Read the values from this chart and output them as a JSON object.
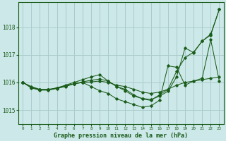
{
  "title": "Graphe pression niveau de la mer (hPa)",
  "bg_color": "#cce8e8",
  "grid_color": "#aacccc",
  "line_color": "#1a5c1a",
  "xlim": [
    -0.5,
    23.5
  ],
  "ylim": [
    1014.5,
    1018.9
  ],
  "yticks": [
    1015,
    1016,
    1017,
    1018
  ],
  "xticks": [
    0,
    1,
    2,
    3,
    4,
    5,
    6,
    7,
    8,
    9,
    10,
    11,
    12,
    13,
    14,
    15,
    16,
    17,
    18,
    19,
    20,
    21,
    22,
    23
  ],
  "lines": [
    [
      1016.0,
      1015.85,
      1015.75,
      1015.75,
      1015.8,
      1015.88,
      1015.95,
      1016.0,
      1016.02,
      1016.05,
      1016.0,
      1015.9,
      1015.85,
      1015.75,
      1015.65,
      1015.6,
      1015.65,
      1015.75,
      1015.9,
      1016.0,
      1016.05,
      1016.1,
      1016.15,
      1016.2
    ],
    [
      1016.0,
      1015.8,
      1015.72,
      1015.72,
      1015.78,
      1015.85,
      1015.95,
      1016.0,
      1015.85,
      1015.7,
      1015.6,
      1015.4,
      1015.3,
      1015.2,
      1015.1,
      1015.15,
      1015.35,
      1016.6,
      1016.55,
      1015.9,
      1016.05,
      1016.15,
      1017.55,
      1016.05
    ],
    [
      1016.0,
      1015.83,
      1015.73,
      1015.73,
      1015.8,
      1015.88,
      1015.95,
      1016.02,
      1016.08,
      1016.12,
      1016.05,
      1015.85,
      1015.75,
      1015.55,
      1015.4,
      1015.35,
      1015.55,
      1015.75,
      1016.4,
      1016.9,
      1017.1,
      1017.5,
      1017.75,
      1018.65
    ],
    [
      1016.0,
      1015.83,
      1015.73,
      1015.73,
      1015.8,
      1015.9,
      1016.0,
      1016.1,
      1016.2,
      1016.28,
      1016.05,
      1015.85,
      1015.7,
      1015.5,
      1015.42,
      1015.38,
      1015.5,
      1015.68,
      1016.2,
      1017.25,
      1017.08,
      1017.5,
      1017.72,
      1018.65
    ]
  ]
}
